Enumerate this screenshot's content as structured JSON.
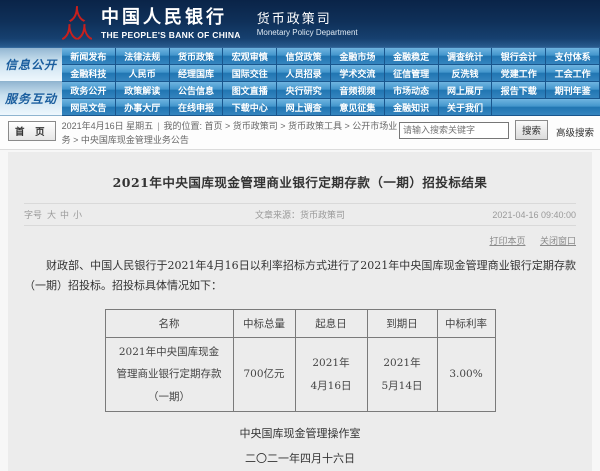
{
  "header": {
    "bank_name_cn": "中国人民银行",
    "bank_name_en": "THE PEOPLE'S BANK OF CHINA",
    "dept_cn": "货币政策司",
    "dept_en": "Monetary Policy Department"
  },
  "nav": {
    "groups": [
      {
        "label": "信息公开",
        "rows": [
          [
            "新闻发布",
            "法律法规",
            "货币政策",
            "宏观审慎",
            "信贷政策",
            "金融市场",
            "金融稳定",
            "调查统计",
            "银行会计",
            "支付体系"
          ],
          [
            "金融科技",
            "人民币",
            "经理国库",
            "国际交往",
            "人员招录",
            "学术交流",
            "征信管理",
            "反洗钱",
            "党建工作",
            "工会工作"
          ]
        ]
      },
      {
        "label": "服务互动",
        "rows": [
          [
            "政务公开",
            "政策解读",
            "公告信息",
            "图文直播",
            "央行研究",
            "音频视频",
            "市场动态",
            "网上展厅",
            "报告下载",
            "期刊年鉴"
          ],
          [
            "网民文告",
            "办事大厅",
            "在线申报",
            "下载中心",
            "网上调查",
            "意见征集",
            "金融知识",
            "关于我们"
          ]
        ]
      }
    ]
  },
  "breadcrumb": {
    "home_button": "首 页",
    "date": "2021年4月16日 星期五",
    "separator": "|",
    "location_prefix": "我的位置: 首页",
    "path": [
      "货币政策司",
      "货币政策工具",
      "公开市场业务",
      "中央国库现金管理业务公告"
    ]
  },
  "search": {
    "placeholder": "请输入搜索关键字",
    "button_label": "搜索",
    "advanced_label": "高级搜索"
  },
  "article": {
    "title": "2021年中央国库现金管理商业银行定期存款（一期）招投标结果",
    "fontsize_label": "字号",
    "fontsize_options": [
      "大",
      "中",
      "小"
    ],
    "source": "文章来源：货币政策司",
    "published": "2021-04-16 09:40:00",
    "print_label": "打印本页",
    "close_label": "关闭窗口",
    "paragraph": "财政部、中国人民银行于2021年4月16日以利率招标方式进行了2021年中央国库现金管理商业银行定期存款（一期）招投标。招投标具体情况如下：",
    "signature": "中央国库现金管理操作室",
    "signature_date": "二〇二一年四月十六日"
  },
  "tender_table": {
    "headers": [
      "名称",
      "中标总量",
      "起息日",
      "到期日",
      "中标利率"
    ],
    "rows": [
      [
        "2021年中央国库现金\n管理商业银行定期存款\n（一期）",
        "700亿元",
        "2021年\n4月16日",
        "2021年\n5月14日",
        "3.00%"
      ]
    ]
  },
  "colors": {
    "header_navy": "#0f3059",
    "nav_blue": "#2176b2",
    "nav_label_blue": "#1b5e9e",
    "logo_red": "#c8201d",
    "link_gray": "#8a8a8a"
  }
}
